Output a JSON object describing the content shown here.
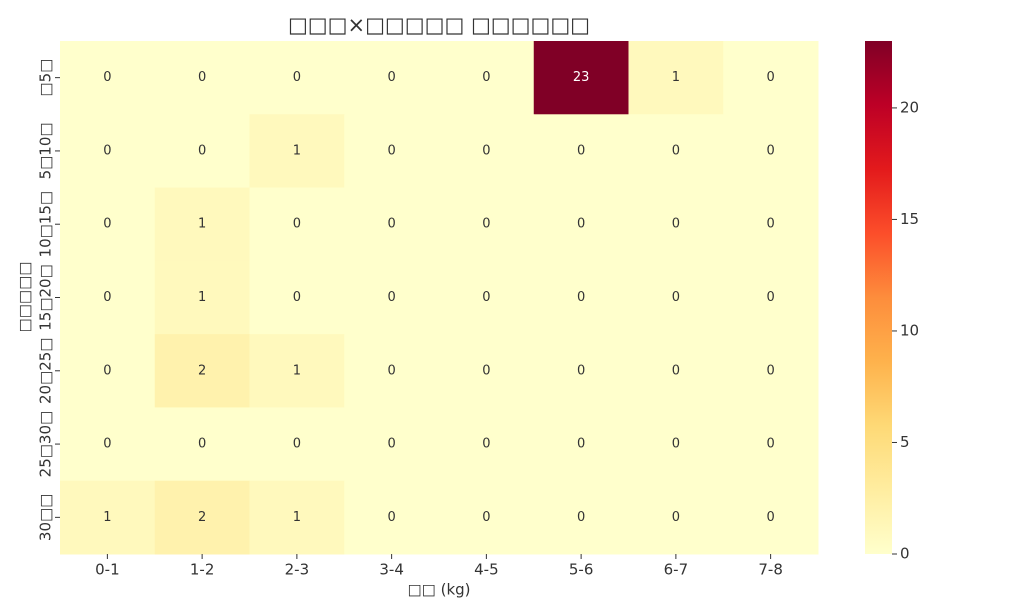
{
  "chart_data": {
    "type": "heatmap",
    "title": "□□□×□□□□□ □□□□□□",
    "x_label": "□□ (kg)",
    "y_label": "□□□□□",
    "x_categories": [
      "0-1",
      "1-2",
      "2-3",
      "3-4",
      "4-5",
      "5-6",
      "6-7",
      "7-8"
    ],
    "y_categories": [
      "□5□",
      "5□10□",
      "10□15□",
      "15□20□",
      "20□25□",
      "25□30□",
      "30□□"
    ],
    "values": [
      [
        0,
        0,
        0,
        0,
        0,
        23,
        1,
        0
      ],
      [
        0,
        0,
        1,
        0,
        0,
        0,
        0,
        0
      ],
      [
        0,
        1,
        0,
        0,
        0,
        0,
        0,
        0
      ],
      [
        0,
        1,
        0,
        0,
        0,
        0,
        0,
        0
      ],
      [
        0,
        2,
        1,
        0,
        0,
        0,
        0,
        0
      ],
      [
        0,
        0,
        0,
        0,
        0,
        0,
        0,
        0
      ],
      [
        1,
        2,
        1,
        0,
        0,
        0,
        0,
        0
      ]
    ],
    "colormap": "YlOrRd",
    "clim": [
      0,
      23
    ],
    "cticks": [
      0,
      5,
      10,
      15,
      20
    ]
  }
}
